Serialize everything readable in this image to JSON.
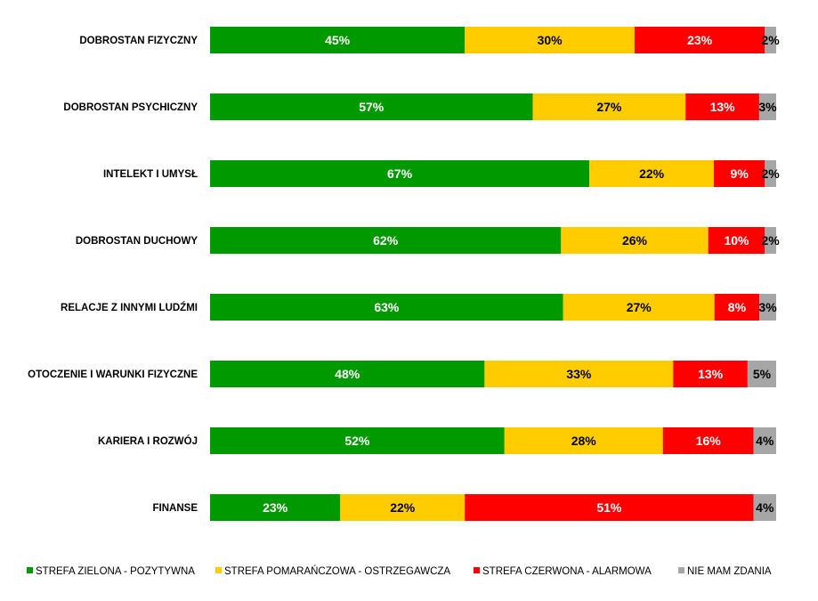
{
  "chart_data": {
    "type": "bar",
    "orientation": "horizontal",
    "stacked": "percent",
    "categories": [
      "DOBROSTAN FIZYCZNY",
      "DOBROSTAN PSYCHICZNY",
      "INTELEKT I UMYSŁ",
      "DOBROSTAN DUCHOWY",
      "RELACJE Z INNYMI LUDŹMI",
      "OTOCZENIE  I WARUNKI FIZYCZNE",
      "KARIERA I ROZWÓJ",
      "FINANSE"
    ],
    "series": [
      {
        "name": "STREFA ZIELONA - POZYTYWNA",
        "color": "#009900",
        "label_color": "#ffffff",
        "values": [
          45,
          57,
          67,
          62,
          63,
          48,
          52,
          23
        ]
      },
      {
        "name": "STREFA POMARAŃCZOWA - OSTRZEGAWCZA",
        "color": "#FFCC00",
        "label_color": "#000000",
        "values": [
          30,
          27,
          22,
          26,
          27,
          33,
          28,
          22
        ]
      },
      {
        "name": "STREFA CZERWONA - ALARMOWA",
        "color": "#FF0000",
        "label_color": "#ffffff",
        "values": [
          23,
          13,
          9,
          10,
          8,
          13,
          16,
          51
        ]
      },
      {
        "name": "NIE MAM ZDANIA",
        "color": "#A6A6A6",
        "label_color": "#000000",
        "values": [
          2,
          3,
          2,
          2,
          3,
          5,
          4,
          4
        ]
      }
    ],
    "value_suffix": "%",
    "legend_position": "bottom",
    "grid": false,
    "title": "",
    "xlabel": "",
    "ylabel": ""
  }
}
